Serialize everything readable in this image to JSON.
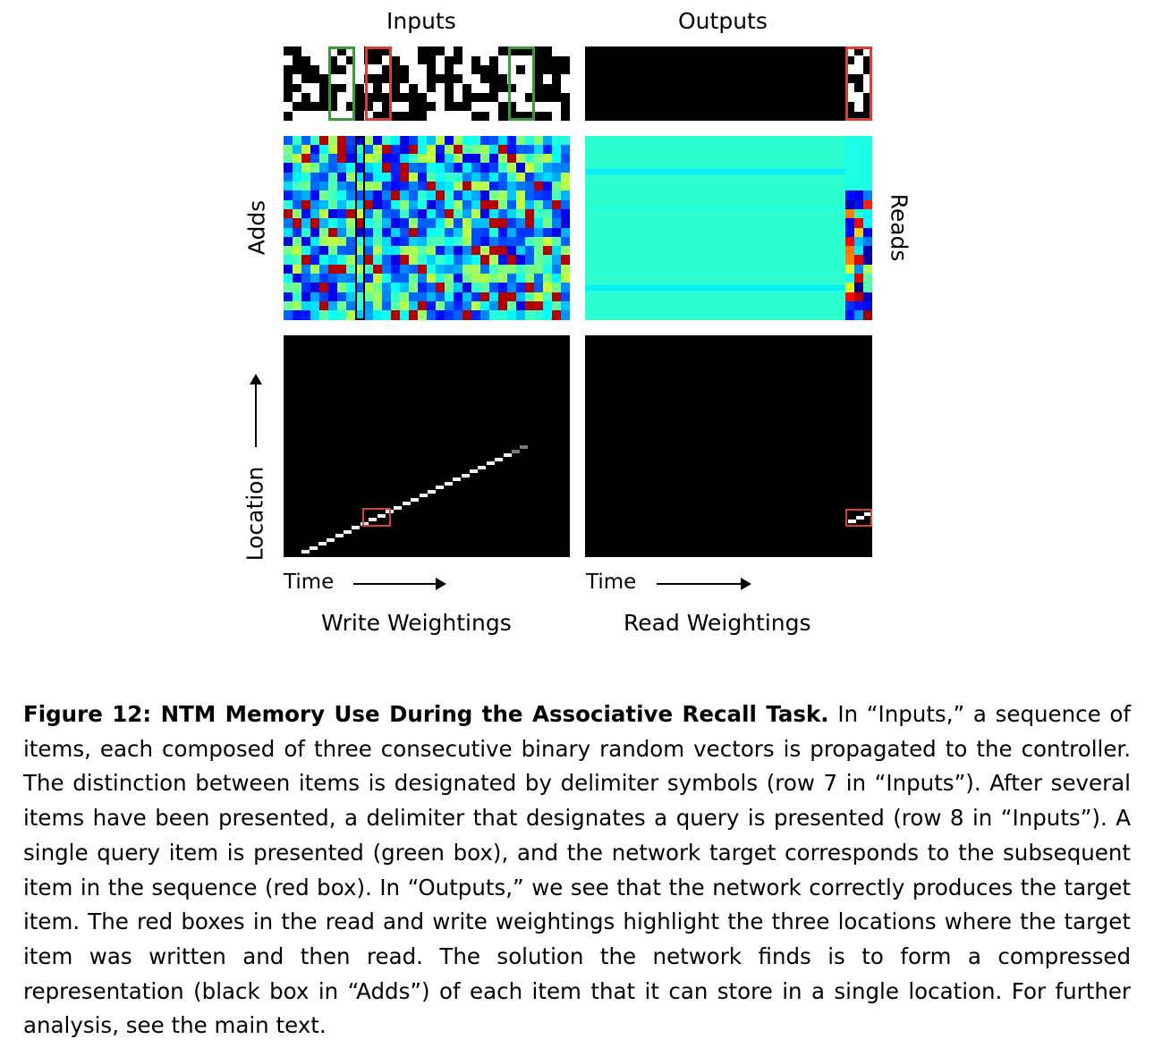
{
  "figure": {
    "labels": {
      "inputs": "Inputs",
      "outputs": "Outputs",
      "adds": "Adds",
      "reads": "Reads",
      "location": "Location",
      "time_left": "Time",
      "time_right": "Time",
      "write_weightings": "Write Weightings",
      "read_weightings": "Read Weightings"
    },
    "colors": {
      "green_box": "#3a9a3a",
      "red_box": "#d9402e",
      "black_box": "#000000"
    }
  },
  "caption": {
    "label": "Figure 12: NTM Memory Use During the Associative Recall Task.",
    "text": "In “Inputs,” a sequence of items, each composed of three consecutive binary random vectors is propagated to the controller. The distinction between items is designated by delimiter symbols (row 7 in “Inputs”). After several items have been presented, a delimiter that designates a query is presented (row 8 in “Inputs”). A single query item is presented (green box), and the network target corresponds to the subsequent item in the sequence (red box). In “Outputs,” we see that the network correctly produces the target item. The red boxes in the read and write weightings highlight the three locations where the target item was written and then read. The solution the network finds is to form a compressed representation (black box in “Adds”) of each item that it can store in a single location. For further analysis, see the main text."
  }
}
